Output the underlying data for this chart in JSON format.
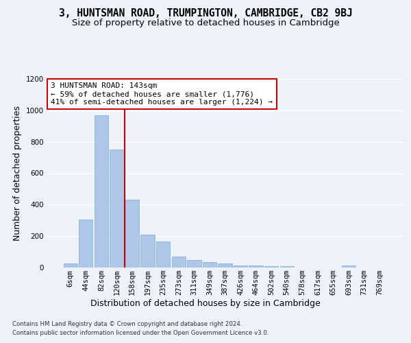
{
  "title": "3, HUNTSMAN ROAD, TRUMPINGTON, CAMBRIDGE, CB2 9BJ",
  "subtitle": "Size of property relative to detached houses in Cambridge",
  "xlabel": "Distribution of detached houses by size in Cambridge",
  "ylabel": "Number of detached properties",
  "categories": [
    "6sqm",
    "44sqm",
    "82sqm",
    "120sqm",
    "158sqm",
    "197sqm",
    "235sqm",
    "273sqm",
    "311sqm",
    "349sqm",
    "387sqm",
    "426sqm",
    "464sqm",
    "502sqm",
    "540sqm",
    "578sqm",
    "617sqm",
    "655sqm",
    "693sqm",
    "731sqm",
    "769sqm"
  ],
  "values": [
    25,
    305,
    970,
    750,
    430,
    210,
    165,
    70,
    47,
    35,
    25,
    15,
    12,
    10,
    10,
    0,
    0,
    0,
    12,
    0,
    0
  ],
  "bar_color": "#aec6e8",
  "bar_edge_color": "#7aafd4",
  "bar_linewidth": 0.5,
  "marker_line_color": "#cc0000",
  "annotation_line1": "3 HUNTSMAN ROAD: 143sqm",
  "annotation_line2": "← 59% of detached houses are smaller (1,776)",
  "annotation_line3": "41% of semi-detached houses are larger (1,224) →",
  "annotation_box_color": "#ffffff",
  "annotation_box_edge_color": "#cc0000",
  "ylim": [
    0,
    1200
  ],
  "yticks": [
    0,
    200,
    400,
    600,
    800,
    1000,
    1200
  ],
  "bg_color": "#eef2fb",
  "plot_bg_color": "#eef2fb",
  "grid_color": "#ffffff",
  "title_fontsize": 10.5,
  "subtitle_fontsize": 9.5,
  "axis_label_fontsize": 9,
  "tick_fontsize": 7.5,
  "footer_line1": "Contains HM Land Registry data © Crown copyright and database right 2024.",
  "footer_line2": "Contains public sector information licensed under the Open Government Licence v3.0."
}
